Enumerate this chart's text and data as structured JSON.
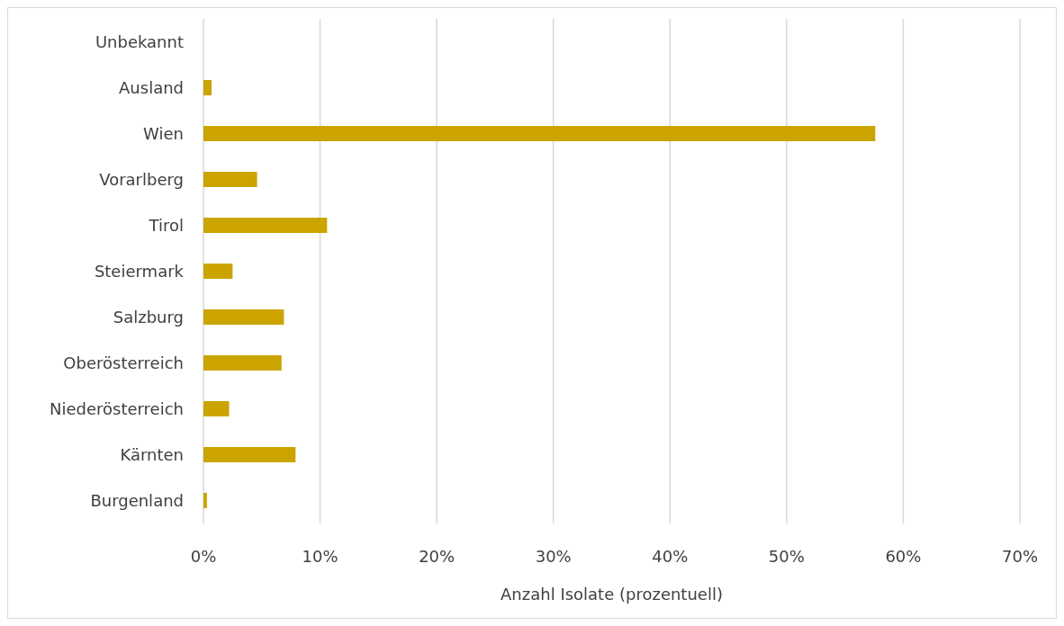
{
  "chart_data": {
    "type": "bar",
    "orientation": "horizontal",
    "xlabel": "Anzahl Isolate (prozentuell)",
    "categories": [
      "Unbekannt",
      "Ausland",
      "Wien",
      "Vorarlberg",
      "Tirol",
      "Steiermark",
      "Salzburg",
      "Oberösterreich",
      "Niederösterreich",
      "Kärnten",
      "Burgenland"
    ],
    "values": [
      0,
      0.7,
      57.6,
      4.6,
      10.6,
      2.5,
      6.9,
      6.7,
      2.2,
      7.9,
      0.3
    ],
    "color": "#cca400",
    "xlim": [
      0,
      70
    ],
    "xticks": [
      {
        "value": 0,
        "label": "0%"
      },
      {
        "value": 10,
        "label": "10%"
      },
      {
        "value": 20,
        "label": "20%"
      },
      {
        "value": 30,
        "label": "30%"
      },
      {
        "value": 40,
        "label": "40%"
      },
      {
        "value": 50,
        "label": "50%"
      },
      {
        "value": 60,
        "label": "60%"
      },
      {
        "value": 70,
        "label": "70%"
      }
    ],
    "grid": "x",
    "legend": false
  }
}
